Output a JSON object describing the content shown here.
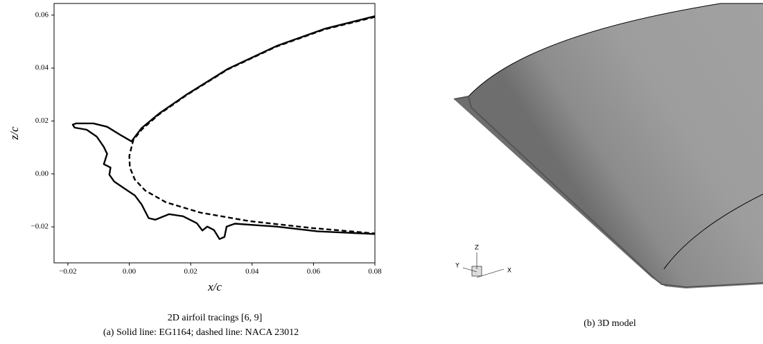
{
  "chart_data": {
    "type": "line",
    "xlabel": "x/c",
    "ylabel": "z/c",
    "xlim": [
      -0.0245,
      0.08
    ],
    "ylim": [
      -0.0336,
      0.0644
    ],
    "xticks": [
      {
        "value": -0.02,
        "label": "−0.02"
      },
      {
        "value": 0,
        "label": "0.00"
      },
      {
        "value": 0.02,
        "label": "0.02"
      },
      {
        "value": 0.04,
        "label": "0.04"
      },
      {
        "value": 0.06,
        "label": "0.06"
      },
      {
        "value": 0.08,
        "label": "0.08"
      }
    ],
    "yticks": [
      {
        "value": -0.02,
        "label": "−0.02"
      },
      {
        "value": 0,
        "label": "0.00"
      },
      {
        "value": 0.02,
        "label": "0.02"
      },
      {
        "value": 0.04,
        "label": "0.04"
      },
      {
        "value": 0.06,
        "label": "0.06"
      }
    ],
    "series": [
      {
        "style": "dashed",
        "color": "#000000",
        "x": [
          0.08,
          0.0636,
          0.0479,
          0.0321,
          0.0187,
          0.0097,
          0.004,
          0.0013,
          0,
          0.0002,
          0.0018,
          0.0052,
          0.0119,
          0.0231,
          0.0389,
          0.0591,
          0.08
        ],
        "values": [
          0.0593,
          0.0546,
          0.0481,
          0.0395,
          0.0298,
          0.0225,
          0.0167,
          0.0128,
          0.0068,
          0.0024,
          -0.0021,
          -0.0063,
          -0.0107,
          -0.0146,
          -0.0178,
          -0.0204,
          -0.0225
        ]
      },
      {
        "style": "solid",
        "color": "#000000",
        "x": [
          0.08,
          0.0636,
          0.0479,
          0.0321,
          0.0187,
          0.0097,
          0.004,
          0.0007,
          -0.0027,
          -0.0072,
          -0.0117,
          -0.0173,
          -0.0184,
          -0.0178,
          -0.0139,
          -0.0106,
          -0.0083,
          -0.0072,
          -0.0083,
          -0.0061,
          -0.0065,
          -0.0049,
          -0.0016,
          0.0018,
          0.004,
          0.0063,
          0.0085,
          0.013,
          0.0175,
          0.022,
          0.0238,
          0.0254,
          0.0276,
          0.0294,
          0.031,
          0.0317,
          0.0344,
          0.0479,
          0.0613,
          0.08
        ],
        "values": [
          0.0596,
          0.0548,
          0.0483,
          0.0397,
          0.03,
          0.0228,
          0.0173,
          0.0123,
          0.0146,
          0.0178,
          0.0191,
          0.0191,
          0.0186,
          0.0175,
          0.0167,
          0.0141,
          0.0102,
          0.0076,
          0.0037,
          0.0024,
          -0.0003,
          -0.0029,
          -0.0055,
          -0.0081,
          -0.0115,
          -0.0167,
          -0.0173,
          -0.0152,
          -0.016,
          -0.0186,
          -0.0214,
          -0.0199,
          -0.0212,
          -0.0246,
          -0.0238,
          -0.0199,
          -0.0188,
          -0.0199,
          -0.0217,
          -0.0227
        ]
      }
    ]
  },
  "captions": {
    "a_title": "2D airfoil tracings [6, 9]",
    "a": "(a) Solid line: EG1164; dashed line: NACA 23012",
    "b": "(b) 3D model"
  },
  "triad": {
    "z": "Z",
    "y": "Y",
    "x": "X"
  }
}
